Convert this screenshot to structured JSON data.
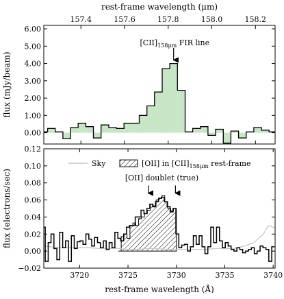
{
  "chart_data": [
    {
      "type": "line",
      "panel": "top",
      "xlabel": "rest-frame wavelength (μm)",
      "ylabel": "flux (mJy/beam)",
      "xlim": [
        157.23,
        158.29
      ],
      "ylim": [
        -0.65,
        6.2
      ],
      "xticks": [
        "157.4",
        "157.6",
        "157.8",
        "158.0",
        "158.2"
      ],
      "yticks": [
        "0.00",
        "1.00",
        "2.00",
        "3.00",
        "4.00",
        "5.00",
        "6.00"
      ],
      "grid": false,
      "annotations": [
        {
          "text_main": "[CII]",
          "text_sub": "158μm",
          "text_rest": " FIR line",
          "x": 157.83,
          "y": 3.6
        }
      ],
      "series": [
        {
          "style": "steps-mid filled",
          "color": "#000000",
          "fill": "#c6e6c6",
          "x": [
            157.23,
            157.265,
            157.3,
            157.335,
            157.37,
            157.405,
            157.44,
            157.475,
            157.51,
            157.545,
            157.58,
            157.615,
            157.65,
            157.685,
            157.72,
            157.755,
            157.79,
            157.825,
            157.86,
            157.895,
            157.93,
            157.965,
            158.0,
            158.035,
            158.07,
            158.105,
            158.14,
            158.175,
            158.21,
            158.245,
            158.28
          ],
          "values": [
            0.05,
            0.25,
            0.05,
            -0.35,
            0.3,
            0.55,
            0.35,
            -0.3,
            0.45,
            0.3,
            0.25,
            0.55,
            0.55,
            1.0,
            1.55,
            2.35,
            3.7,
            4.0,
            2.45,
            0.05,
            0.25,
            0.35,
            -0.15,
            0.2,
            -0.6,
            0.1,
            -0.3,
            0.05,
            0.3,
            0.15,
            0.05
          ]
        }
      ]
    },
    {
      "type": "line",
      "panel": "bottom",
      "xlabel": "rest-frame wavelength (Å)",
      "ylabel": "flux (electrons/sec)",
      "xlim": [
        3716.3,
        3740.2
      ],
      "ylim": [
        -0.02,
        0.12
      ],
      "xticks": [
        "3720",
        "3725",
        "3730",
        "3735",
        "3740"
      ],
      "yticks": [
        "−0.02",
        "0.00",
        "0.02",
        "0.04",
        "0.06",
        "0.08",
        "0.10",
        "0.12"
      ],
      "grid": false,
      "legend": {
        "placement": "top",
        "entries": [
          {
            "label": "Sky",
            "style": "line",
            "color": "#c8c8c8"
          },
          {
            "label_main": "[OII] in [CII]",
            "label_sub": "158μm",
            "label_rest": " rest-frame",
            "style": "hatched"
          }
        ]
      },
      "annotations": [
        {
          "text": "[OII] doublet (true)",
          "arrows_x": [
            3727.1,
            3729.9
          ],
          "y": 0.068
        }
      ],
      "hatched_band": {
        "x": [
          3724.0,
          3724.3,
          3724.6,
          3724.9,
          3725.2,
          3725.5,
          3725.8,
          3726.1,
          3726.4,
          3726.7,
          3727.0,
          3727.3,
          3727.6,
          3727.9,
          3728.2,
          3728.5,
          3728.8,
          3729.1,
          3729.4,
          3729.7,
          3730.0
        ],
        "values": [
          0.0,
          0.017,
          0.02,
          0.015,
          0.03,
          0.033,
          0.03,
          0.038,
          0.04,
          0.044,
          0.048,
          0.055,
          0.053,
          0.06,
          0.062,
          0.065,
          0.058,
          0.05,
          0.047,
          0.05,
          0.048
        ]
      },
      "series": [
        {
          "name": "Sky",
          "style": "line",
          "color": "#c8c8c8",
          "x": [
            3716.3,
            3717,
            3718,
            3719,
            3720,
            3721,
            3722,
            3723,
            3724,
            3725,
            3726,
            3727,
            3728,
            3729,
            3730,
            3731,
            3732,
            3733,
            3734,
            3735,
            3736,
            3737,
            3738,
            3739,
            3739.5,
            3740.2
          ],
          "values": [
            0.006,
            0.005,
            0.004,
            0.004,
            0.004,
            0.004,
            0.003,
            0.003,
            0.003,
            0.002,
            0.002,
            0.003,
            0.003,
            0.002,
            0.002,
            0.002,
            0.002,
            0.002,
            0.003,
            0.003,
            0.003,
            0.006,
            0.01,
            0.02,
            0.03,
            0.027
          ]
        },
        {
          "name": "",
          "style": "steps-mid",
          "color": "#000000",
          "x": [
            3716.3,
            3716.6,
            3716.9,
            3717.2,
            3717.5,
            3717.8,
            3718.1,
            3718.4,
            3718.7,
            3719.0,
            3719.3,
            3719.6,
            3719.9,
            3720.2,
            3720.5,
            3720.8,
            3721.1,
            3721.4,
            3721.7,
            3722.0,
            3722.3,
            3722.6,
            3722.9,
            3723.2,
            3723.5,
            3723.8,
            3724.1,
            3724.4,
            3724.7,
            3725.0,
            3725.3,
            3725.6,
            3725.9,
            3726.2,
            3726.5,
            3726.8,
            3727.1,
            3727.4,
            3727.7,
            3728.0,
            3728.3,
            3728.6,
            3728.9,
            3729.2,
            3729.5,
            3729.8,
            3730.1,
            3730.4,
            3730.7,
            3731.0,
            3731.3,
            3731.6,
            3731.9,
            3732.2,
            3732.5,
            3732.8,
            3733.1,
            3733.4,
            3733.7,
            3734.0,
            3734.3,
            3734.6,
            3734.9,
            3735.2,
            3735.5,
            3735.8,
            3736.1,
            3736.4,
            3736.7,
            3737.0,
            3737.3,
            3737.6,
            3737.9,
            3738.2,
            3738.5,
            3738.8,
            3739.1,
            3739.4,
            3739.7,
            3740.0
          ],
          "values": [
            0.028,
            -0.012,
            0.01,
            0.02,
            0.003,
            -0.01,
            0.022,
            0.004,
            0.012,
            -0.012,
            0.018,
            0.003,
            0.011,
            0.012,
            0.008,
            0.02,
            0.014,
            0.006,
            0.016,
            0.01,
            0.004,
            0.012,
            0.002,
            0.01,
            0.004,
            0.022,
            0.015,
            0.012,
            0.02,
            0.028,
            0.03,
            0.03,
            0.04,
            0.04,
            0.048,
            0.044,
            0.05,
            0.055,
            0.052,
            0.058,
            0.062,
            0.063,
            0.058,
            0.052,
            0.046,
            0.05,
            0.02,
            0.004,
            0.007,
            0.008,
            0.0,
            0.005,
            0.018,
            0.008,
            0.018,
            0.005,
            -0.003,
            0.005,
            0.028,
            0.01,
            0.028,
            0.012,
            0.004,
            0.01,
            0.006,
            0.002,
            0.0,
            0.004,
            0.002,
            -0.002,
            0.0,
            0.002,
            0.004,
            -0.003,
            0.0,
            0.006,
            0.004,
            0.002,
            -0.012,
            0.005
          ]
        }
      ]
    }
  ]
}
